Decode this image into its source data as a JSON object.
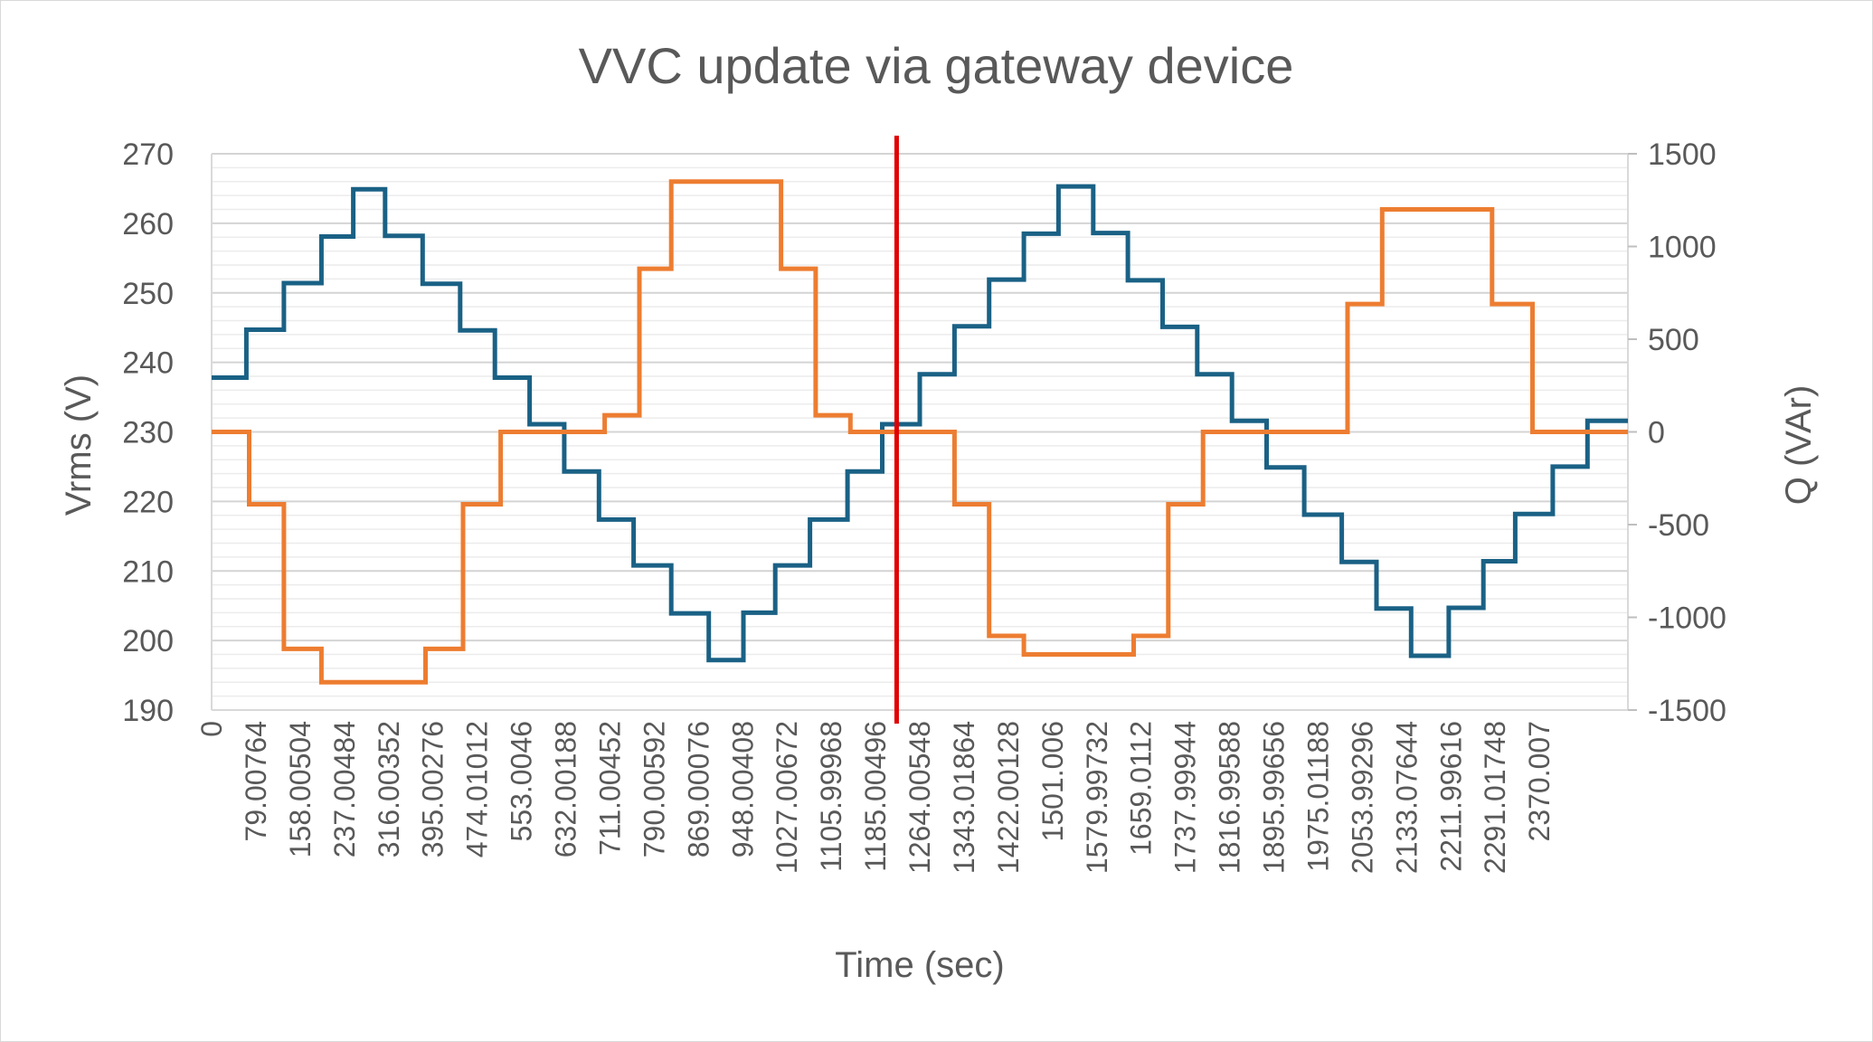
{
  "chart_data": {
    "type": "line",
    "title": "VVC update via gateway device",
    "xlabel": "Time (sec)",
    "ylabel_left": "Vrms (V)",
    "ylabel_right": "Q (VAr)",
    "y_left_range": [
      190,
      270
    ],
    "y_left_ticks": [
      "190",
      "200",
      "210",
      "220",
      "230",
      "240",
      "250",
      "260",
      "270"
    ],
    "y_right_range": [
      -1500,
      1500
    ],
    "y_right_ticks": [
      "-1500",
      "-1000",
      "-500",
      "0",
      "500",
      "1000",
      "1500"
    ],
    "x_range": [
      0,
      2450
    ],
    "x_tick_labels": [
      "0",
      "79.00764",
      "158.00504",
      "237.00484",
      "316.00352",
      "395.00276",
      "474.01012",
      "553.0046",
      "632.00188",
      "711.00452",
      "790.00592",
      "869.00076",
      "948.00408",
      "1027.00672",
      "1105.99968",
      "1185.00496",
      "1264.00548",
      "1343.01864",
      "1422.00128",
      "1501.006",
      "1579.99732",
      "1659.0112",
      "1737.99944",
      "1816.99588",
      "1895.99656",
      "1975.01188",
      "2053.99296",
      "2133.07644",
      "2211.99616",
      "2291.01748",
      "2370.007"
    ],
    "grid": true,
    "marker_line": {
      "x": 1185,
      "color": "#e00000"
    },
    "series": [
      {
        "axis": "left",
        "color": "#1a6185",
        "steps": [
          [
            0,
            237.8
          ],
          [
            60,
            244.7
          ],
          [
            125,
            251.4
          ],
          [
            190,
            258.1
          ],
          [
            245,
            264.9
          ],
          [
            300,
            258.2
          ],
          [
            365,
            251.3
          ],
          [
            430,
            244.6
          ],
          [
            490,
            237.8
          ],
          [
            550,
            231.1
          ],
          [
            610,
            224.3
          ],
          [
            670,
            217.4
          ],
          [
            730,
            210.8
          ],
          [
            795,
            203.9
          ],
          [
            860,
            197.2
          ],
          [
            920,
            204.0
          ],
          [
            975,
            210.8
          ],
          [
            1035,
            217.4
          ],
          [
            1100,
            224.3
          ],
          [
            1160,
            231.1
          ],
          [
            1225,
            238.3
          ],
          [
            1285,
            245.2
          ],
          [
            1345,
            251.9
          ],
          [
            1405,
            258.5
          ],
          [
            1465,
            265.3
          ],
          [
            1525,
            258.6
          ],
          [
            1585,
            251.8
          ],
          [
            1645,
            245.1
          ],
          [
            1705,
            238.3
          ],
          [
            1765,
            231.6
          ],
          [
            1825,
            224.9
          ],
          [
            1890,
            218.1
          ],
          [
            1955,
            211.3
          ],
          [
            2015,
            204.6
          ],
          [
            2075,
            197.8
          ],
          [
            2140,
            204.7
          ],
          [
            2200,
            211.4
          ],
          [
            2255,
            218.2
          ],
          [
            2320,
            225.0
          ],
          [
            2380,
            231.6
          ],
          [
            2450,
            231.6
          ]
        ]
      },
      {
        "axis": "right",
        "color": "#ed7d31",
        "steps": [
          [
            0,
            0
          ],
          [
            65,
            -390
          ],
          [
            125,
            -1170
          ],
          [
            190,
            -1350
          ],
          [
            370,
            -1170
          ],
          [
            435,
            -390
          ],
          [
            500,
            0
          ],
          [
            680,
            90
          ],
          [
            740,
            880
          ],
          [
            795,
            1350
          ],
          [
            985,
            880
          ],
          [
            1045,
            90
          ],
          [
            1105,
            0
          ],
          [
            1285,
            -390
          ],
          [
            1345,
            -1100
          ],
          [
            1405,
            -1200
          ],
          [
            1595,
            -1100
          ],
          [
            1655,
            -390
          ],
          [
            1715,
            0
          ],
          [
            1965,
            690
          ],
          [
            2025,
            1200
          ],
          [
            2215,
            690
          ],
          [
            2285,
            0
          ],
          [
            2450,
            0
          ]
        ]
      }
    ]
  }
}
